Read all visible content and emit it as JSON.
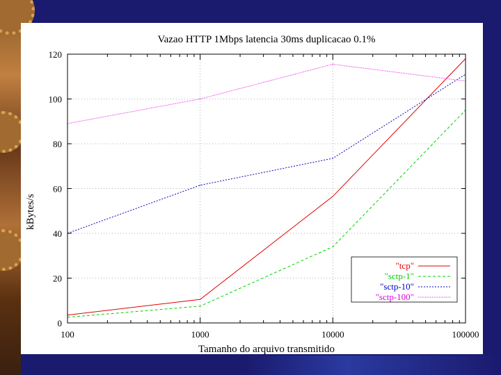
{
  "chart_data": {
    "type": "line",
    "title": "Vazao HTTP 1Mbps latencia 30ms duplicacao 0.1%",
    "xlabel": "Tamanho do arquivo transmitido",
    "ylabel": "kBytes/s",
    "xscale": "log",
    "xlim": [
      100,
      100000
    ],
    "ylim": [
      0,
      120
    ],
    "x_ticks": [
      "100",
      "1000",
      "10000",
      "100000"
    ],
    "y_ticks": [
      "0",
      "20",
      "40",
      "60",
      "80",
      "100",
      "120"
    ],
    "grid": "dotted at major ticks",
    "legend_position": "bottom-right",
    "x": [
      100,
      1000,
      10000,
      100000
    ],
    "series": [
      {
        "name": "\"tcp\"",
        "color": "#e00000",
        "dash": "solid",
        "values": [
          3.5,
          10.5,
          56.5,
          118
        ]
      },
      {
        "name": "\"sctp-1\"",
        "color": "#00d000",
        "dash": "dashed",
        "values": [
          2.5,
          7.5,
          34,
          95
        ]
      },
      {
        "name": "\"sctp-10\"",
        "color": "#0000c0",
        "dash": "dotted",
        "values": [
          40,
          61.5,
          73.5,
          111
        ]
      },
      {
        "name": "\"sctp-100\"",
        "color": "#e000e0",
        "dash": "dense-dotted",
        "values": [
          89,
          100,
          115.5,
          108
        ]
      }
    ]
  }
}
